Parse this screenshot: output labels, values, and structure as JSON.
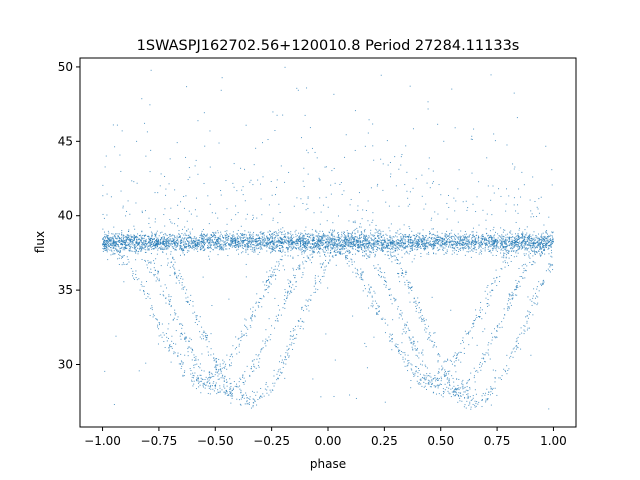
{
  "chart_data": {
    "type": "scatter",
    "title": "1SWASPJ162702.56+120010.8 Period 27284.11133s",
    "xlabel": "phase",
    "ylabel": "flux",
    "xlim": [
      -1.1,
      1.1
    ],
    "ylim": [
      25.8,
      50.6
    ],
    "xticks": [
      -1.0,
      -0.75,
      -0.5,
      -0.25,
      0.0,
      0.25,
      0.5,
      0.75,
      1.0
    ],
    "xtick_labels": [
      "−1.00",
      "−0.75",
      "−0.50",
      "−0.25",
      "0.00",
      "0.25",
      "0.50",
      "0.75",
      "1.00"
    ],
    "yticks": [
      30,
      35,
      40,
      45,
      50
    ],
    "ytick_labels": [
      "30",
      "35",
      "40",
      "45",
      "50"
    ],
    "grid": false,
    "marker_color": "#1f77b4",
    "series": [
      {
        "description_role": "baseline",
        "x_range": [
          -1.0,
          1.0
        ],
        "y_center": 38.2,
        "y_spread": 0.6
      },
      {
        "description_role": "eclipse-tracks",
        "tracks": [
          {
            "phase_min": -0.55,
            "depth": 9.3
          },
          {
            "phase_min": -0.45,
            "depth": 10.0
          },
          {
            "phase_min": -0.35,
            "depth": 10.7
          },
          {
            "phase_min": 0.45,
            "depth": 9.3
          },
          {
            "phase_min": 0.55,
            "depth": 10.0
          },
          {
            "phase_min": 0.65,
            "depth": 10.7
          }
        ],
        "half_width": 0.45
      }
    ],
    "outlier_y_range": [
      27.0,
      50.0
    ]
  }
}
